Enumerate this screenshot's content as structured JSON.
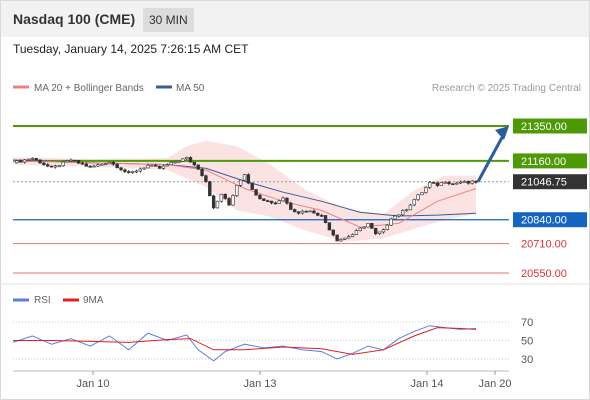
{
  "header": {
    "title": "Nasdaq 100 (CME)",
    "timeframe": "30 MIN",
    "datetime": "Tuesday, January 14, 2025 7:26:15 AM CET"
  },
  "legend": {
    "ma20_label": "MA 20 + Bollinger Bands",
    "ma20_color": "#f08080",
    "ma50_label": "MA 50",
    "ma50_color": "#3b5b92"
  },
  "watermark": "Research © 2025 Trading Central",
  "rsi_legend": {
    "rsi_label": "RSI",
    "rsi_color": "#5b7fe0",
    "ma9_label": "9MA",
    "ma9_color": "#e02020"
  },
  "chart_data": [
    {
      "type": "candlestick",
      "title": "Nasdaq 100 (CME)",
      "timeframe": "30 MIN",
      "x_axis_labels": [
        "Jan 10",
        "Jan 13",
        "Jan 14",
        "Jan 20"
      ],
      "current_price": 21046.75,
      "levels": [
        {
          "value": 21350.0,
          "label": "21350.00",
          "kind": "resistance",
          "color": "#4e9a06"
        },
        {
          "value": 21160.0,
          "label": "21160.00",
          "kind": "resistance",
          "color": "#4e9a06"
        },
        {
          "value": 21046.75,
          "label": "21046.75",
          "kind": "last",
          "color": "#333333"
        },
        {
          "value": 20840.0,
          "label": "20840.00",
          "kind": "pivot",
          "color": "#1565c0"
        },
        {
          "value": 20710.0,
          "label": "20710.00",
          "kind": "support",
          "color": "#e57373"
        },
        {
          "value": 20550.0,
          "label": "20550.00",
          "kind": "support",
          "color": "#e57373"
        }
      ],
      "scenario": "up",
      "grid": false,
      "price_path": [
        {
          "i": 0,
          "v": 21150
        },
        {
          "i": 5,
          "v": 21175
        },
        {
          "i": 10,
          "v": 21120
        },
        {
          "i": 15,
          "v": 21165
        },
        {
          "i": 20,
          "v": 21125
        },
        {
          "i": 25,
          "v": 21155
        },
        {
          "i": 30,
          "v": 21090
        },
        {
          "i": 35,
          "v": 21135
        },
        {
          "i": 38,
          "v": 21120
        },
        {
          "i": 42,
          "v": 21155
        },
        {
          "i": 45,
          "v": 21175
        },
        {
          "i": 48,
          "v": 21120
        },
        {
          "i": 50,
          "v": 21050
        },
        {
          "i": 52,
          "v": 20900
        },
        {
          "i": 54,
          "v": 20980
        },
        {
          "i": 56,
          "v": 20920
        },
        {
          "i": 58,
          "v": 21030
        },
        {
          "i": 60,
          "v": 21090
        },
        {
          "i": 62,
          "v": 21000
        },
        {
          "i": 64,
          "v": 20960
        },
        {
          "i": 66,
          "v": 20940
        },
        {
          "i": 68,
          "v": 20930
        },
        {
          "i": 70,
          "v": 20960
        },
        {
          "i": 72,
          "v": 20900
        },
        {
          "i": 74,
          "v": 20880
        },
        {
          "i": 76,
          "v": 20890
        },
        {
          "i": 78,
          "v": 20880
        },
        {
          "i": 80,
          "v": 20860
        },
        {
          "i": 82,
          "v": 20790
        },
        {
          "i": 84,
          "v": 20730
        },
        {
          "i": 86,
          "v": 20740
        },
        {
          "i": 88,
          "v": 20760
        },
        {
          "i": 90,
          "v": 20790
        },
        {
          "i": 92,
          "v": 20820
        },
        {
          "i": 94,
          "v": 20760
        },
        {
          "i": 96,
          "v": 20780
        },
        {
          "i": 98,
          "v": 20850
        },
        {
          "i": 100,
          "v": 20870
        },
        {
          "i": 102,
          "v": 20900
        },
        {
          "i": 104,
          "v": 20950
        },
        {
          "i": 106,
          "v": 20990
        },
        {
          "i": 108,
          "v": 21040
        },
        {
          "i": 110,
          "v": 21030
        },
        {
          "i": 112,
          "v": 21050
        },
        {
          "i": 114,
          "v": 21035
        },
        {
          "i": 116,
          "v": 21045
        },
        {
          "i": 118,
          "v": 21040
        },
        {
          "i": 120,
          "v": 21046.75
        }
      ],
      "ma50_path": [
        {
          "i": 0,
          "v": 21165
        },
        {
          "i": 20,
          "v": 21150
        },
        {
          "i": 40,
          "v": 21140
        },
        {
          "i": 50,
          "v": 21120
        },
        {
          "i": 60,
          "v": 21050
        },
        {
          "i": 70,
          "v": 20990
        },
        {
          "i": 80,
          "v": 20940
        },
        {
          "i": 90,
          "v": 20880
        },
        {
          "i": 100,
          "v": 20860
        },
        {
          "i": 110,
          "v": 20865
        },
        {
          "i": 120,
          "v": 20875
        }
      ],
      "ma20_path": [
        {
          "i": 0,
          "v": 21160
        },
        {
          "i": 20,
          "v": 21150
        },
        {
          "i": 40,
          "v": 21140
        },
        {
          "i": 50,
          "v": 21110
        },
        {
          "i": 60,
          "v": 21010
        },
        {
          "i": 70,
          "v": 20940
        },
        {
          "i": 80,
          "v": 20890
        },
        {
          "i": 90,
          "v": 20800
        },
        {
          "i": 100,
          "v": 20820
        },
        {
          "i": 110,
          "v": 20940
        },
        {
          "i": 120,
          "v": 21010
        }
      ],
      "band_upper": [
        {
          "i": 0,
          "v": 21180
        },
        {
          "i": 20,
          "v": 21170
        },
        {
          "i": 40,
          "v": 21175
        },
        {
          "i": 45,
          "v": 21240
        },
        {
          "i": 50,
          "v": 21270
        },
        {
          "i": 58,
          "v": 21240
        },
        {
          "i": 66,
          "v": 21150
        },
        {
          "i": 76,
          "v": 21000
        },
        {
          "i": 86,
          "v": 20900
        },
        {
          "i": 96,
          "v": 20870
        },
        {
          "i": 104,
          "v": 21000
        },
        {
          "i": 112,
          "v": 21080
        },
        {
          "i": 120,
          "v": 21080
        }
      ],
      "band_lower": [
        {
          "i": 0,
          "v": 21140
        },
        {
          "i": 20,
          "v": 21130
        },
        {
          "i": 40,
          "v": 21110
        },
        {
          "i": 50,
          "v": 21020
        },
        {
          "i": 58,
          "v": 20890
        },
        {
          "i": 66,
          "v": 20860
        },
        {
          "i": 76,
          "v": 20780
        },
        {
          "i": 86,
          "v": 20720
        },
        {
          "i": 96,
          "v": 20740
        },
        {
          "i": 104,
          "v": 20790
        },
        {
          "i": 112,
          "v": 20840
        },
        {
          "i": 120,
          "v": 20870
        }
      ],
      "projection": {
        "from_i": 120,
        "from_v": 21046.75,
        "to_v": 21350
      }
    },
    {
      "type": "line",
      "title": "",
      "series_labels": [
        "RSI",
        "9MA"
      ],
      "y_ticks": [
        70,
        50,
        30
      ],
      "ylim": [
        20,
        80
      ],
      "rsi": [
        {
          "i": 0,
          "v": 48
        },
        {
          "i": 5,
          "v": 55
        },
        {
          "i": 10,
          "v": 46
        },
        {
          "i": 15,
          "v": 52
        },
        {
          "i": 20,
          "v": 44
        },
        {
          "i": 25,
          "v": 55
        },
        {
          "i": 30,
          "v": 40
        },
        {
          "i": 35,
          "v": 58
        },
        {
          "i": 40,
          "v": 50
        },
        {
          "i": 45,
          "v": 56
        },
        {
          "i": 48,
          "v": 40
        },
        {
          "i": 52,
          "v": 28
        },
        {
          "i": 55,
          "v": 38
        },
        {
          "i": 60,
          "v": 46
        },
        {
          "i": 65,
          "v": 42
        },
        {
          "i": 70,
          "v": 44
        },
        {
          "i": 75,
          "v": 40
        },
        {
          "i": 80,
          "v": 38
        },
        {
          "i": 84,
          "v": 30
        },
        {
          "i": 88,
          "v": 36
        },
        {
          "i": 92,
          "v": 44
        },
        {
          "i": 96,
          "v": 40
        },
        {
          "i": 100,
          "v": 52
        },
        {
          "i": 104,
          "v": 60
        },
        {
          "i": 108,
          "v": 66
        },
        {
          "i": 112,
          "v": 64
        },
        {
          "i": 116,
          "v": 62
        },
        {
          "i": 120,
          "v": 63
        }
      ],
      "ma9": [
        {
          "i": 0,
          "v": 50
        },
        {
          "i": 10,
          "v": 50
        },
        {
          "i": 20,
          "v": 49
        },
        {
          "i": 30,
          "v": 48
        },
        {
          "i": 40,
          "v": 51
        },
        {
          "i": 46,
          "v": 52
        },
        {
          "i": 52,
          "v": 40
        },
        {
          "i": 60,
          "v": 40
        },
        {
          "i": 70,
          "v": 43
        },
        {
          "i": 80,
          "v": 41
        },
        {
          "i": 88,
          "v": 35
        },
        {
          "i": 96,
          "v": 40
        },
        {
          "i": 104,
          "v": 55
        },
        {
          "i": 110,
          "v": 64
        },
        {
          "i": 116,
          "v": 63
        },
        {
          "i": 120,
          "v": 62
        }
      ]
    }
  ]
}
